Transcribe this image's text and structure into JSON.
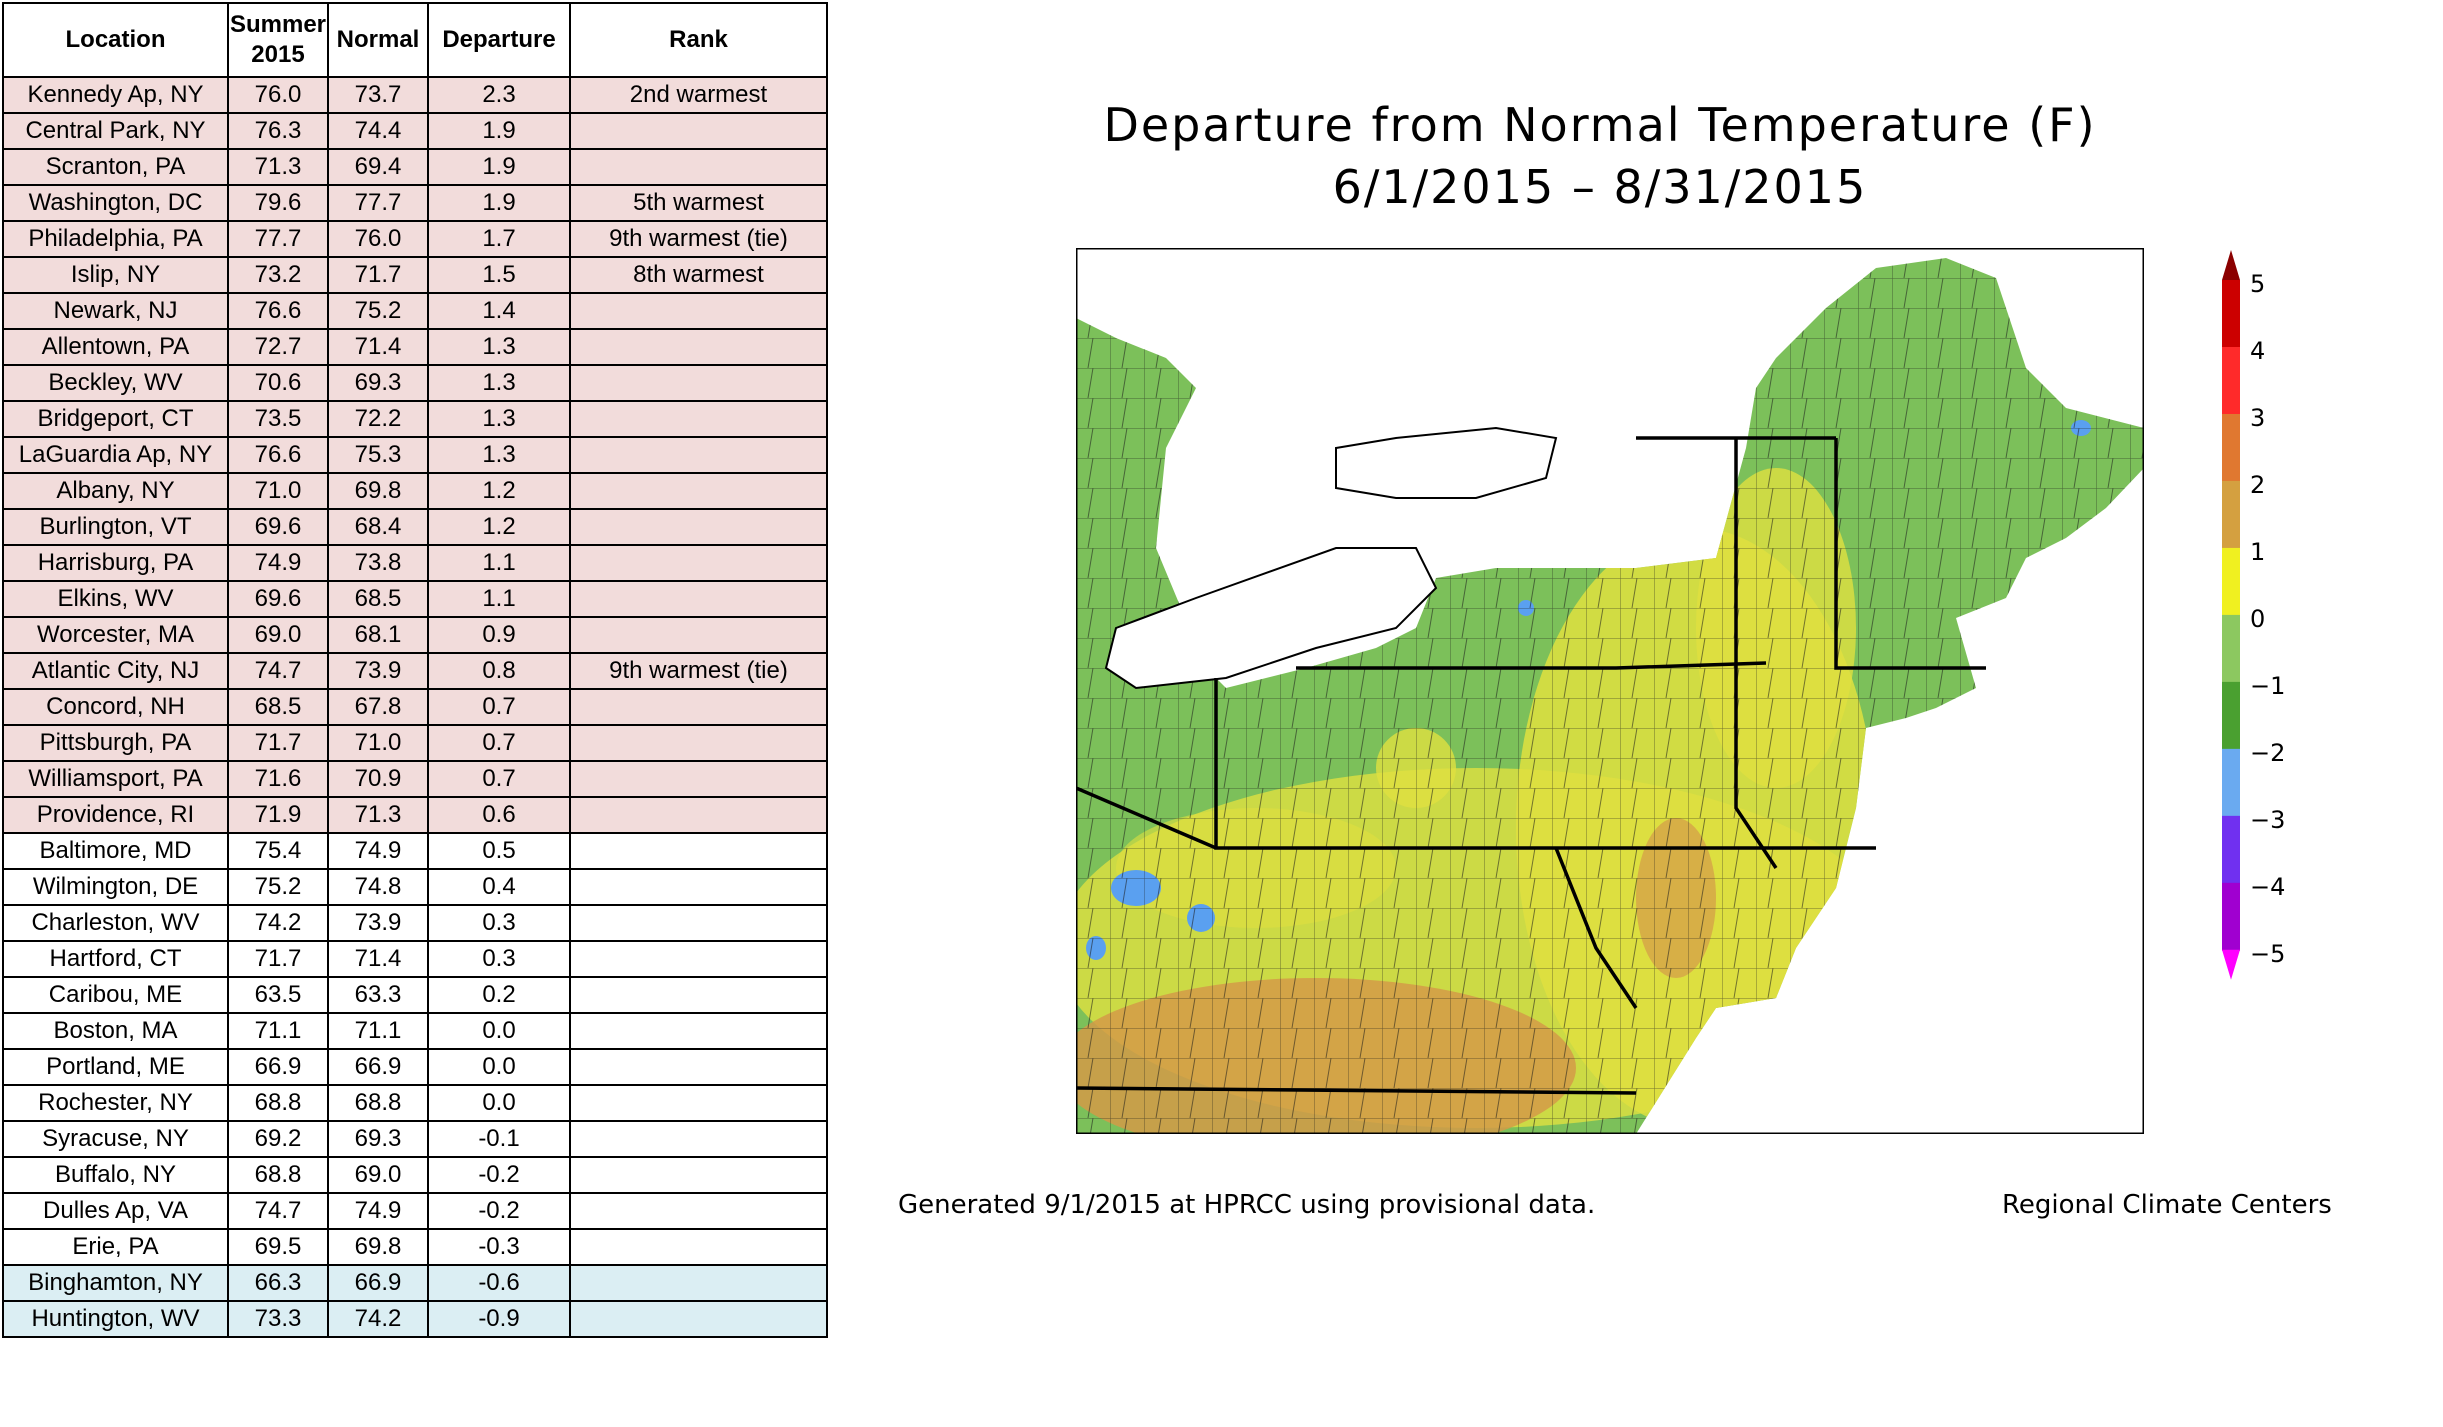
{
  "table": {
    "headers": [
      "Location",
      "Summer 2015",
      "Normal",
      "Departure",
      "Rank"
    ],
    "rows": [
      [
        "Kennedy Ap, NY",
        "76.0",
        "73.7",
        "2.3",
        "2nd warmest"
      ],
      [
        "Central Park, NY",
        "76.3",
        "74.4",
        "1.9",
        ""
      ],
      [
        "Scranton, PA",
        "71.3",
        "69.4",
        "1.9",
        ""
      ],
      [
        "Washington, DC",
        "79.6",
        "77.7",
        "1.9",
        "5th warmest"
      ],
      [
        "Philadelphia, PA",
        "77.7",
        "76.0",
        "1.7",
        "9th warmest (tie)"
      ],
      [
        "Islip, NY",
        "73.2",
        "71.7",
        "1.5",
        "8th warmest"
      ],
      [
        "Newark, NJ",
        "76.6",
        "75.2",
        "1.4",
        ""
      ],
      [
        "Allentown, PA",
        "72.7",
        "71.4",
        "1.3",
        ""
      ],
      [
        "Beckley, WV",
        "70.6",
        "69.3",
        "1.3",
        ""
      ],
      [
        "Bridgeport, CT",
        "73.5",
        "72.2",
        "1.3",
        ""
      ],
      [
        "LaGuardia Ap, NY",
        "76.6",
        "75.3",
        "1.3",
        ""
      ],
      [
        "Albany, NY",
        "71.0",
        "69.8",
        "1.2",
        ""
      ],
      [
        "Burlington, VT",
        "69.6",
        "68.4",
        "1.2",
        ""
      ],
      [
        "Harrisburg, PA",
        "74.9",
        "73.8",
        "1.1",
        ""
      ],
      [
        "Elkins, WV",
        "69.6",
        "68.5",
        "1.1",
        ""
      ],
      [
        "Worcester, MA",
        "69.0",
        "68.1",
        "0.9",
        ""
      ],
      [
        "Atlantic City, NJ",
        "74.7",
        "73.9",
        "0.8",
        "9th warmest (tie)"
      ],
      [
        "Concord, NH",
        "68.5",
        "67.8",
        "0.7",
        ""
      ],
      [
        "Pittsburgh, PA",
        "71.7",
        "71.0",
        "0.7",
        ""
      ],
      [
        "Williamsport, PA",
        "71.6",
        "70.9",
        "0.7",
        ""
      ],
      [
        "Providence, RI",
        "71.9",
        "71.3",
        "0.6",
        ""
      ],
      [
        "Baltimore, MD",
        "75.4",
        "74.9",
        "0.5",
        ""
      ],
      [
        "Wilmington, DE",
        "75.2",
        "74.8",
        "0.4",
        ""
      ],
      [
        "Charleston, WV",
        "74.2",
        "73.9",
        "0.3",
        ""
      ],
      [
        "Hartford, CT",
        "71.7",
        "71.4",
        "0.3",
        ""
      ],
      [
        "Caribou, ME",
        "63.5",
        "63.3",
        "0.2",
        ""
      ],
      [
        "Boston, MA",
        "71.1",
        "71.1",
        "0.0",
        ""
      ],
      [
        "Portland, ME",
        "66.9",
        "66.9",
        "0.0",
        ""
      ],
      [
        "Rochester, NY",
        "68.8",
        "68.8",
        "0.0",
        ""
      ],
      [
        "Syracuse, NY",
        "69.2",
        "69.3",
        "-0.1",
        ""
      ],
      [
        "Buffalo, NY",
        "68.8",
        "69.0",
        "-0.2",
        ""
      ],
      [
        "Dulles Ap, VA",
        "74.7",
        "74.9",
        "-0.2",
        ""
      ],
      [
        "Erie, PA",
        "69.5",
        "69.8",
        "-0.3",
        ""
      ],
      [
        "Binghamton, NY",
        "66.3",
        "66.9",
        "-0.6",
        ""
      ],
      [
        "Huntington, WV",
        "73.3",
        "74.2",
        "-0.9",
        ""
      ]
    ],
    "row_colors": {
      "warm": "#f2dcdb",
      "normal": "#ffffff",
      "cool": "#dbeef3"
    }
  },
  "map": {
    "title_line1": "Departure from Normal Temperature (F)",
    "title_line2": "6/1/2015 – 8/31/2015",
    "footer_left": "Generated 9/1/2015 at HPRCC using provisional data.",
    "footer_right": "Regional Climate Centers",
    "legend": {
      "ticks": [
        "5",
        "4",
        "3",
        "2",
        "1",
        "0",
        "−1",
        "−2",
        "−3",
        "−4",
        "−5"
      ],
      "colors": [
        "#8b0000",
        "#cc0000",
        "#ff2a2a",
        "#e07830",
        "#d4a040",
        "#f0f020",
        "#8cc860",
        "#4aa030",
        "#6aaaf0",
        "#7030f0",
        "#a000d0",
        "#ff00ff"
      ]
    },
    "colors": {
      "land_cool": "#7cc05a",
      "land_warm": "#e0e040",
      "land_hot": "#d49a48",
      "water": "#ffffff",
      "spots_blue": "#5aa0f0"
    }
  }
}
